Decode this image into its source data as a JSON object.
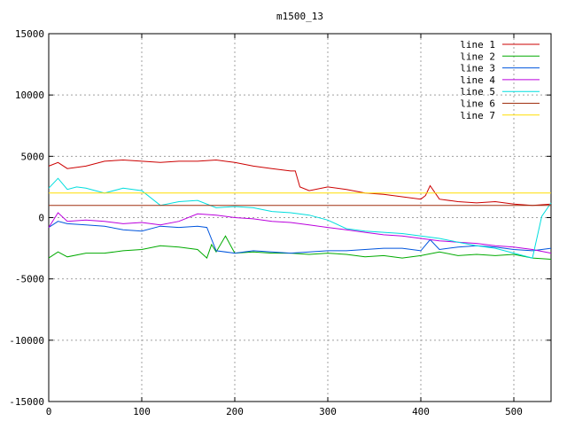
{
  "chart_data": {
    "type": "line",
    "title": "m1500_13",
    "xlabel": "",
    "ylabel": "",
    "xlim": [
      0,
      540
    ],
    "ylim": [
      -15000,
      15000
    ],
    "x_ticks": [
      0,
      100,
      200,
      300,
      400,
      500
    ],
    "y_ticks": [
      -15000,
      -10000,
      -5000,
      0,
      5000,
      10000,
      15000
    ],
    "grid": true,
    "legend_position": "top-right",
    "series": [
      {
        "name": "line 1",
        "color": "#cc0000",
        "x": [
          0,
          10,
          20,
          40,
          60,
          80,
          100,
          120,
          140,
          160,
          180,
          200,
          220,
          240,
          260,
          265,
          270,
          280,
          300,
          320,
          340,
          360,
          380,
          400,
          405,
          410,
          420,
          440,
          460,
          480,
          500,
          520,
          540
        ],
        "y": [
          4200,
          4500,
          4000,
          4200,
          4600,
          4700,
          4600,
          4500,
          4600,
          4600,
          4700,
          4500,
          4200,
          4000,
          3800,
          3800,
          2500,
          2200,
          2500,
          2300,
          2000,
          1900,
          1700,
          1500,
          1800,
          2600,
          1500,
          1300,
          1200,
          1300,
          1100,
          1000,
          1100
        ]
      },
      {
        "name": "line 2",
        "color": "#00aa00",
        "x": [
          0,
          10,
          20,
          40,
          60,
          80,
          100,
          120,
          140,
          160,
          170,
          175,
          180,
          190,
          200,
          220,
          240,
          260,
          280,
          300,
          320,
          340,
          360,
          380,
          400,
          420,
          440,
          460,
          480,
          500,
          520,
          540
        ],
        "y": [
          -3300,
          -2800,
          -3200,
          -2900,
          -2900,
          -2700,
          -2600,
          -2300,
          -2400,
          -2600,
          -3300,
          -2200,
          -2800,
          -1500,
          -2900,
          -2800,
          -2900,
          -2900,
          -3000,
          -2900,
          -3000,
          -3200,
          -3100,
          -3300,
          -3100,
          -2800,
          -3100,
          -3000,
          -3100,
          -3000,
          -3300,
          -3400
        ]
      },
      {
        "name": "line 3",
        "color": "#0055dd",
        "x": [
          0,
          10,
          20,
          40,
          60,
          80,
          100,
          120,
          140,
          160,
          170,
          180,
          200,
          220,
          240,
          260,
          280,
          300,
          320,
          340,
          360,
          380,
          400,
          410,
          420,
          440,
          460,
          480,
          500,
          520,
          540
        ],
        "y": [
          -800,
          -300,
          -500,
          -600,
          -700,
          -1000,
          -1100,
          -700,
          -800,
          -700,
          -800,
          -2700,
          -2900,
          -2700,
          -2800,
          -2900,
          -2800,
          -2700,
          -2700,
          -2600,
          -2500,
          -2500,
          -2700,
          -1800,
          -2600,
          -2400,
          -2300,
          -2400,
          -2600,
          -2700,
          -2500
        ]
      },
      {
        "name": "line 4",
        "color": "#bb00dd",
        "x": [
          0,
          10,
          20,
          40,
          60,
          80,
          100,
          120,
          140,
          160,
          180,
          200,
          220,
          240,
          260,
          280,
          300,
          320,
          340,
          360,
          380,
          400,
          420,
          440,
          460,
          480,
          500,
          520,
          540
        ],
        "y": [
          -800,
          400,
          -300,
          -200,
          -300,
          -500,
          -400,
          -600,
          -300,
          300,
          200,
          0,
          -100,
          -300,
          -400,
          -600,
          -800,
          -1000,
          -1200,
          -1400,
          -1500,
          -1700,
          -1900,
          -2000,
          -2100,
          -2300,
          -2400,
          -2600,
          -2900
        ]
      },
      {
        "name": "line 5",
        "color": "#00dddd",
        "x": [
          0,
          10,
          20,
          30,
          40,
          60,
          80,
          100,
          120,
          140,
          160,
          180,
          200,
          220,
          240,
          260,
          280,
          300,
          320,
          340,
          360,
          380,
          400,
          420,
          440,
          460,
          480,
          500,
          520,
          530,
          540
        ],
        "y": [
          2400,
          3200,
          2300,
          2500,
          2400,
          2000,
          2400,
          2200,
          1000,
          1300,
          1400,
          800,
          900,
          800,
          500,
          400,
          200,
          -200,
          -900,
          -1100,
          -1200,
          -1300,
          -1500,
          -1700,
          -2000,
          -2300,
          -2500,
          -2900,
          -3300,
          100,
          1200
        ]
      },
      {
        "name": "line 6",
        "color": "#a03010",
        "x": [
          0,
          40,
          80,
          120,
          160,
          200,
          240,
          280,
          320,
          360,
          400,
          440,
          480,
          520,
          540
        ],
        "y": [
          1000,
          1000,
          1000,
          1000,
          1000,
          1000,
          1000,
          1000,
          1000,
          1000,
          1000,
          1000,
          1000,
          1000,
          1000
        ]
      },
      {
        "name": "line 7",
        "color": "#ffdd00",
        "x": [
          0,
          40,
          80,
          120,
          160,
          200,
          240,
          280,
          320,
          360,
          400,
          440,
          480,
          520,
          540
        ],
        "y": [
          2000,
          2000,
          2000,
          2000,
          2000,
          2000,
          2000,
          2000,
          2000,
          2000,
          2000,
          2000,
          2000,
          2000,
          2000
        ]
      }
    ]
  }
}
